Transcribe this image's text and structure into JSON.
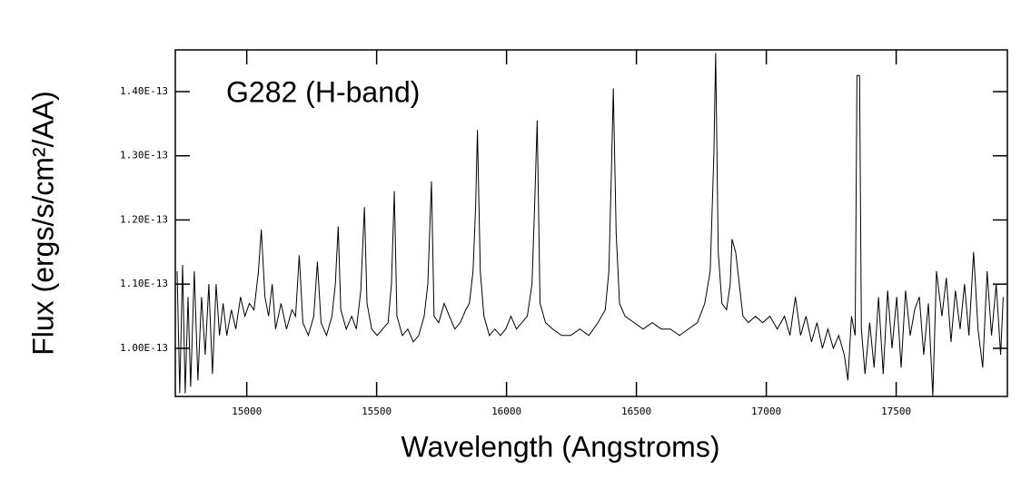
{
  "chart_data": {
    "type": "line",
    "annotation": "G282 (H-band)",
    "xlabel": "Wavelength (Angstroms)",
    "ylabel": "Flux (ergs/s/cm²/AA)",
    "color": "#000000",
    "xlim": [
      14725,
      17928
    ],
    "ylim": [
      9.25e-14,
      1.465e-13
    ],
    "xticks": [
      15000,
      15500,
      16000,
      16500,
      17000,
      17500
    ],
    "yticks": [
      {
        "value": 1e-13,
        "label": "1.00E-13"
      },
      {
        "value": 1.1e-13,
        "label": "1.10E-13"
      },
      {
        "value": 1.2e-13,
        "label": "1.20E-13"
      },
      {
        "value": 1.3e-13,
        "label": "1.30E-13"
      },
      {
        "value": 1.4e-13,
        "label": "1.40E-13"
      }
    ],
    "x": [
      14732,
      14742,
      14753,
      14763,
      14774,
      14784,
      14798,
      14812,
      14826,
      14840,
      14854,
      14868,
      14882,
      14895,
      14909,
      14923,
      14941,
      14958,
      14976,
      14993,
      15010,
      15028,
      15045,
      15056,
      15070,
      15084,
      15098,
      15111,
      15132,
      15153,
      15174,
      15188,
      15202,
      15216,
      15237,
      15258,
      15272,
      15286,
      15307,
      15328,
      15341,
      15352,
      15362,
      15383,
      15404,
      15422,
      15439,
      15453,
      15463,
      15481,
      15502,
      15523,
      15544,
      15557,
      15568,
      15578,
      15599,
      15620,
      15641,
      15662,
      15683,
      15697,
      15711,
      15721,
      15739,
      15760,
      15780,
      15801,
      15822,
      15843,
      15857,
      15871,
      15881,
      15888,
      15899,
      15913,
      15934,
      15955,
      15976,
      15997,
      16017,
      16038,
      16059,
      16080,
      16098,
      16108,
      16118,
      16129,
      16150,
      16178,
      16212,
      16247,
      16282,
      16317,
      16352,
      16380,
      16394,
      16404,
      16411,
      16422,
      16435,
      16456,
      16491,
      16526,
      16561,
      16596,
      16631,
      16666,
      16700,
      16735,
      16763,
      16784,
      16798,
      16805,
      16815,
      16829,
      16847,
      16861,
      16868,
      16882,
      16896,
      16910,
      16931,
      16958,
      16986,
      17014,
      17042,
      17070,
      17091,
      17112,
      17132,
      17153,
      17174,
      17195,
      17216,
      17237,
      17258,
      17279,
      17300,
      17314,
      17328,
      17342,
      17349,
      17359,
      17366,
      17380,
      17398,
      17415,
      17432,
      17450,
      17467,
      17484,
      17502,
      17519,
      17536,
      17554,
      17571,
      17589,
      17606,
      17624,
      17641,
      17655,
      17676,
      17693,
      17711,
      17728,
      17746,
      17763,
      17780,
      17798,
      17815,
      17833,
      17850,
      17867,
      17885,
      17902,
      17912
    ],
    "values": [
      1.12e-13,
      9.3e-14,
      1.13e-13,
      9.3e-14,
      1.08e-13,
      9.4e-14,
      1.12e-13,
      9.5e-14,
      1.08e-13,
      9.9e-14,
      1.1e-13,
      9.6e-14,
      1.1e-13,
      1.02e-13,
      1.07e-13,
      1.02e-13,
      1.06e-13,
      1.03e-13,
      1.08e-13,
      1.05e-13,
      1.07e-13,
      1.06e-13,
      1.12e-13,
      1.185e-13,
      1.08e-13,
      1.05e-13,
      1.1e-13,
      1.03e-13,
      1.07e-13,
      1.03e-13,
      1.06e-13,
      1.05e-13,
      1.145e-13,
      1.04e-13,
      1.02e-13,
      1.05e-13,
      1.135e-13,
      1.04e-13,
      1.02e-13,
      1.05e-13,
      1.1e-13,
      1.19e-13,
      1.06e-13,
      1.03e-13,
      1.05e-13,
      1.03e-13,
      1.09e-13,
      1.22e-13,
      1.07e-13,
      1.03e-13,
      1.02e-13,
      1.03e-13,
      1.04e-13,
      1.1e-13,
      1.245e-13,
      1.05e-13,
      1.02e-13,
      1.03e-13,
      1.01e-13,
      1.02e-13,
      1.05e-13,
      1.1e-13,
      1.26e-13,
      1.05e-13,
      1.04e-13,
      1.07e-13,
      1.05e-13,
      1.03e-13,
      1.04e-13,
      1.06e-13,
      1.07e-13,
      1.12e-13,
      1.22e-13,
      1.34e-13,
      1.12e-13,
      1.05e-13,
      1.02e-13,
      1.03e-13,
      1.02e-13,
      1.03e-13,
      1.05e-13,
      1.03e-13,
      1.04e-13,
      1.05e-13,
      1.1e-13,
      1.22e-13,
      1.355e-13,
      1.07e-13,
      1.04e-13,
      1.03e-13,
      1.02e-13,
      1.02e-13,
      1.03e-13,
      1.02e-13,
      1.04e-13,
      1.06e-13,
      1.12e-13,
      1.28e-13,
      1.405e-13,
      1.18e-13,
      1.07e-13,
      1.05e-13,
      1.04e-13,
      1.03e-13,
      1.04e-13,
      1.03e-13,
      1.03e-13,
      1.02e-13,
      1.03e-13,
      1.04e-13,
      1.07e-13,
      1.12e-13,
      1.3e-13,
      1.46e-13,
      1.15e-13,
      1.07e-13,
      1.06e-13,
      1.1e-13,
      1.17e-13,
      1.15e-13,
      1.1e-13,
      1.05e-13,
      1.04e-13,
      1.05e-13,
      1.04e-13,
      1.05e-13,
      1.03e-13,
      1.05e-13,
      1.02e-13,
      1.08e-13,
      1.02e-13,
      1.05e-13,
      1.01e-13,
      1.04e-13,
      1e-13,
      1.03e-13,
      1e-13,
      1.02e-13,
      9.9e-14,
      9.5e-14,
      1.05e-13,
      1.02e-13,
      1.425e-13,
      1.425e-13,
      1.03e-13,
      9.6e-14,
      1.04e-13,
      9.7e-14,
      1.08e-13,
      9.6e-14,
      1.09e-13,
      1e-13,
      1.08e-13,
      9.7e-14,
      1.09e-13,
      1.02e-13,
      1.06e-13,
      1.08e-13,
      9.9e-14,
      1.07e-13,
      9.25e-14,
      1.12e-13,
      1.05e-13,
      1.11e-13,
      1.01e-13,
      1.09e-13,
      1.03e-13,
      1.1e-13,
      1.02e-13,
      1.15e-13,
      1.03e-13,
      9.7e-14,
      1.12e-13,
      1.02e-13,
      1.1e-13,
      9.9e-14,
      1.08e-13
    ]
  }
}
